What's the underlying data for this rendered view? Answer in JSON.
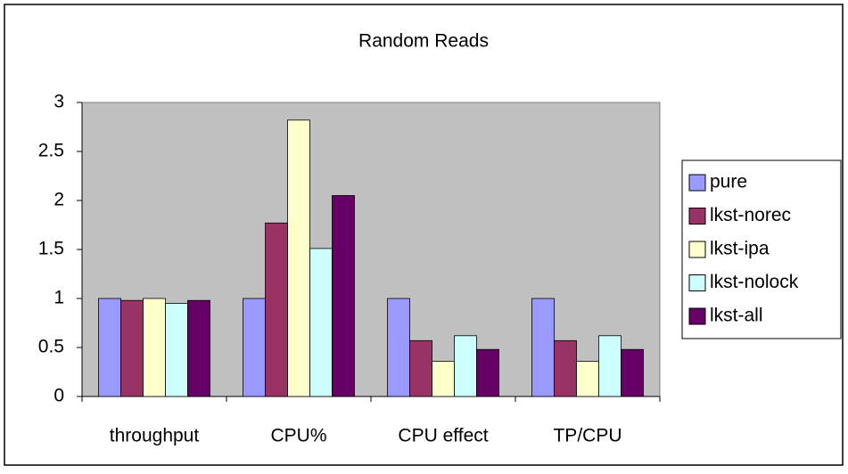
{
  "chart_data": {
    "type": "bar",
    "title": "Random Reads",
    "categories": [
      "throughput",
      "CPU%",
      "CPU effect",
      "TP/CPU"
    ],
    "series": [
      {
        "name": "pure",
        "color": "#9999ff",
        "values": [
          1.0,
          1.0,
          1.0,
          1.0
        ]
      },
      {
        "name": "lkst-norec",
        "color": "#993366",
        "values": [
          0.98,
          1.77,
          0.57,
          0.57
        ]
      },
      {
        "name": "lkst-ipa",
        "color": "#ffffcc",
        "values": [
          1.0,
          2.82,
          0.36,
          0.36
        ]
      },
      {
        "name": "lkst-nolock",
        "color": "#ccffff",
        "values": [
          0.95,
          1.51,
          0.62,
          0.62
        ]
      },
      {
        "name": "lkst-all",
        "color": "#660066",
        "values": [
          0.98,
          2.05,
          0.48,
          0.48
        ]
      }
    ],
    "ylim": [
      0,
      3
    ],
    "yticks": [
      0,
      0.5,
      1,
      1.5,
      2,
      2.5,
      3
    ],
    "legend": "right",
    "plot_background": "#c0c0c0"
  }
}
